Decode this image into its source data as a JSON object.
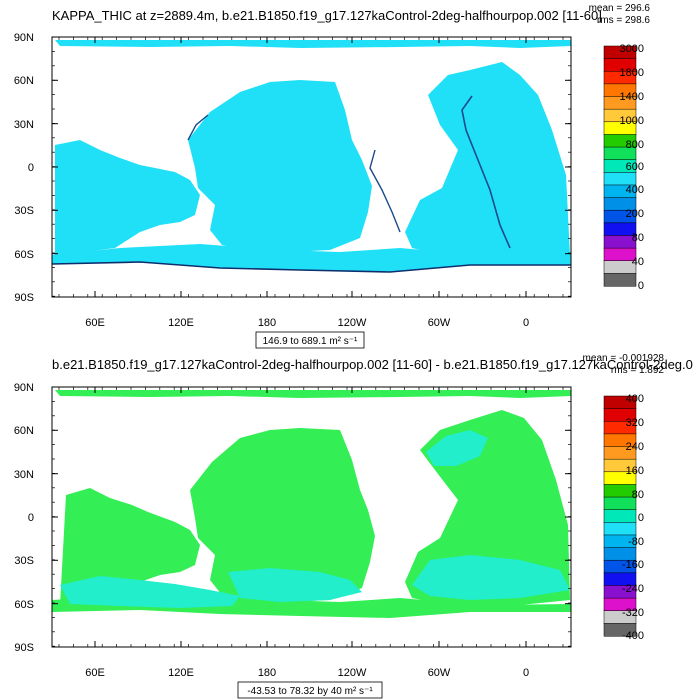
{
  "chart_data": [
    {
      "type": "heatmap",
      "title": "KAPPA_THIC at z=2889.4m, b.e21.B1850.f19_g17.127kaControl-2deg-halfhourpop.002 [11-60]",
      "mean_label": "mean = 296.6",
      "rms_label": "rms = 298.6",
      "range_label": "146.9 to 689.1 m² s⁻¹",
      "x_ticks": [
        "60E",
        "120E",
        "180",
        "120W",
        "60W",
        "0"
      ],
      "y_ticks": [
        "90N",
        "60N",
        "30N",
        "0",
        "30S",
        "60S",
        "90S"
      ],
      "colorbar_labels": [
        "3000",
        "1800",
        "1400",
        "1000",
        "800",
        "600",
        "400",
        "200",
        "80",
        "40",
        "0"
      ],
      "colorbar_colors": [
        "#c00000",
        "#e00000",
        "#ff2a00",
        "#ff7700",
        "#ff9a20",
        "#ffc93a",
        "#ffff00",
        "#22cc00",
        "#11e05a",
        "#00e8b8",
        "#20e0f8",
        "#00b4f0",
        "#0090e8",
        "#0055e8",
        "#1010f0",
        "#8a10d0",
        "#dd10cc",
        "#cccccc",
        "#666666"
      ],
      "dominant_field_color": "#20e0f8",
      "field_value_range": [
        146.9,
        689.1
      ]
    },
    {
      "type": "heatmap",
      "title": "b.e21.B1850.f19_g17.127kaControl-2deg-halfhourpop.002 [11-60] - b.e21.B1850.f19_g17.127kaControl-2deg.0",
      "mean_label": "mean = -0.001928",
      "rms_label": "rms = 1.892",
      "range_label": "-43.53 to 78.32 by 40 m² s⁻¹",
      "x_ticks": [
        "60E",
        "120E",
        "180",
        "120W",
        "60W",
        "0"
      ],
      "y_ticks": [
        "90N",
        "60N",
        "30N",
        "0",
        "30S",
        "60S",
        "90S"
      ],
      "colorbar_labels": [
        "400",
        "320",
        "240",
        "160",
        "80",
        "0",
        "-80",
        "-160",
        "-240",
        "-320",
        "-400"
      ],
      "colorbar_colors": [
        "#c00000",
        "#e00000",
        "#ff2a00",
        "#ff7700",
        "#ff9a20",
        "#ffc93a",
        "#ffff00",
        "#22cc00",
        "#11e05a",
        "#00e8b8",
        "#20e0f8",
        "#00b4f0",
        "#0090e8",
        "#0055e8",
        "#1010f0",
        "#8a10d0",
        "#dd10cc",
        "#cccccc",
        "#666666"
      ],
      "dominant_field_colors": [
        "#33ee55",
        "#22eecc"
      ],
      "field_value_range": [
        -43.53,
        78.32
      ]
    }
  ]
}
